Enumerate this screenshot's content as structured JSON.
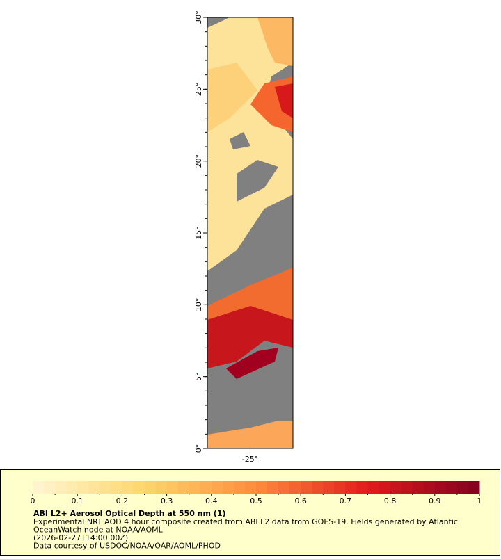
{
  "map": {
    "lat_ticks": [
      {
        "value": 0,
        "label": "0°"
      },
      {
        "value": 5,
        "label": "5°"
      },
      {
        "value": 10,
        "label": "10°"
      },
      {
        "value": 15,
        "label": "15°"
      },
      {
        "value": 20,
        "label": "20°"
      },
      {
        "value": 25,
        "label": "25°"
      },
      {
        "value": 30,
        "label": "30°"
      }
    ],
    "lon_ticks": [
      {
        "value": -25,
        "label": "-25°"
      }
    ],
    "latlim": [
      0,
      30
    ],
    "lonlim": [
      -28,
      -22
    ]
  },
  "legend": {
    "title": "ABI L2+ Aerosol Optical Depth at 550 nm (1)",
    "lines": [
      "Experimental NRT AOD 4 hour composite created from ABI L2 data from GOES-19. Fields generated by Atlantic",
      "OceanWatch node at NOAA/AOML",
      "(2026-02-27T14:00:00Z)",
      "Data courtesy of USDOC/NOAA/OAR/AOML/PHOD"
    ],
    "colorbar": {
      "range": [
        0,
        1
      ],
      "ticks": [
        0,
        0.1,
        0.2,
        0.3,
        0.4,
        0.5,
        0.6,
        0.7,
        0.8,
        0.9,
        1
      ],
      "colors": [
        "#fff6d2",
        "#fdd66c",
        "#fd8c3c",
        "#e31a1c",
        "#80001f"
      ]
    }
  }
}
